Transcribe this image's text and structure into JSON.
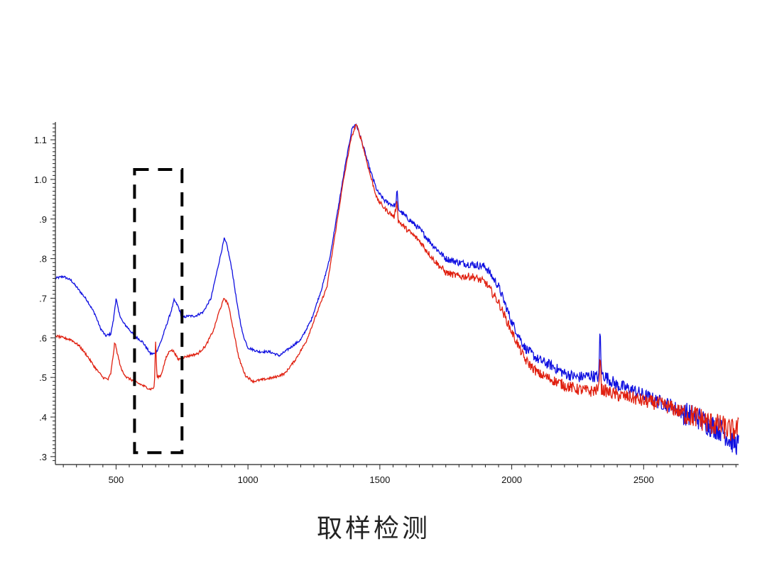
{
  "caption": "取样检测",
  "chart_data": {
    "type": "line",
    "xlim": [
      270,
      2860
    ],
    "ylim": [
      0.28,
      1.145
    ],
    "x_ticks": [
      500,
      1000,
      1500,
      2000,
      2500
    ],
    "x_tick_labels": [
      "500",
      "1000",
      "1500",
      "2000",
      "2500"
    ],
    "y_ticks": [
      0.3,
      0.4,
      0.5,
      0.6,
      0.7,
      0.8,
      0.9,
      1.0,
      1.1
    ],
    "y_tick_labels": [
      ".3",
      ".4",
      ".5",
      ".6",
      ".7",
      ".8",
      ".9",
      "1.0",
      "1.1"
    ],
    "grid": false,
    "highlight_box": {
      "x": [
        570,
        750
      ],
      "y": [
        0.31,
        1.025
      ],
      "style": "dashed"
    },
    "series": [
      {
        "color": "#1010e0",
        "points": [
          [
            270,
            0.75
          ],
          [
            300,
            0.755
          ],
          [
            330,
            0.745
          ],
          [
            360,
            0.72
          ],
          [
            390,
            0.695
          ],
          [
            420,
            0.66
          ],
          [
            440,
            0.625
          ],
          [
            460,
            0.605
          ],
          [
            480,
            0.61
          ],
          [
            490,
            0.645
          ],
          [
            500,
            0.7
          ],
          [
            510,
            0.665
          ],
          [
            525,
            0.64
          ],
          [
            545,
            0.625
          ],
          [
            570,
            0.605
          ],
          [
            600,
            0.59
          ],
          [
            630,
            0.56
          ],
          [
            650,
            0.56
          ],
          [
            670,
            0.59
          ],
          [
            690,
            0.63
          ],
          [
            710,
            0.67
          ],
          [
            720,
            0.695
          ],
          [
            735,
            0.68
          ],
          [
            750,
            0.65
          ],
          [
            770,
            0.655
          ],
          [
            800,
            0.655
          ],
          [
            830,
            0.665
          ],
          [
            860,
            0.7
          ],
          [
            880,
            0.76
          ],
          [
            900,
            0.82
          ],
          [
            910,
            0.85
          ],
          [
            920,
            0.835
          ],
          [
            940,
            0.77
          ],
          [
            960,
            0.68
          ],
          [
            980,
            0.61
          ],
          [
            1000,
            0.575
          ],
          [
            1040,
            0.565
          ],
          [
            1080,
            0.565
          ],
          [
            1120,
            0.555
          ],
          [
            1160,
            0.575
          ],
          [
            1200,
            0.595
          ],
          [
            1240,
            0.645
          ],
          [
            1280,
            0.725
          ],
          [
            1310,
            0.8
          ],
          [
            1340,
            0.92
          ],
          [
            1370,
            1.04
          ],
          [
            1395,
            1.13
          ],
          [
            1410,
            1.14
          ],
          [
            1430,
            1.1
          ],
          [
            1460,
            1.03
          ],
          [
            1490,
            0.97
          ],
          [
            1520,
            0.945
          ],
          [
            1550,
            0.935
          ],
          [
            1560,
            0.935
          ],
          [
            1565,
            0.975
          ],
          [
            1570,
            0.925
          ],
          [
            1600,
            0.905
          ],
          [
            1650,
            0.875
          ],
          [
            1700,
            0.835
          ],
          [
            1750,
            0.8
          ],
          [
            1800,
            0.79
          ],
          [
            1850,
            0.785
          ],
          [
            1900,
            0.78
          ],
          [
            1950,
            0.73
          ],
          [
            2000,
            0.64
          ],
          [
            2050,
            0.575
          ],
          [
            2100,
            0.545
          ],
          [
            2150,
            0.53
          ],
          [
            2200,
            0.51
          ],
          [
            2250,
            0.5
          ],
          [
            2300,
            0.505
          ],
          [
            2330,
            0.5
          ],
          [
            2335,
            0.63
          ],
          [
            2340,
            0.51
          ],
          [
            2400,
            0.48
          ],
          [
            2450,
            0.47
          ],
          [
            2500,
            0.455
          ],
          [
            2550,
            0.44
          ],
          [
            2600,
            0.43
          ],
          [
            2650,
            0.41
          ],
          [
            2700,
            0.4
          ],
          [
            2750,
            0.38
          ],
          [
            2800,
            0.365
          ],
          [
            2830,
            0.34
          ],
          [
            2860,
            0.33
          ]
        ]
      },
      {
        "color": "#e02010",
        "points": [
          [
            270,
            0.605
          ],
          [
            300,
            0.6
          ],
          [
            330,
            0.595
          ],
          [
            360,
            0.58
          ],
          [
            390,
            0.555
          ],
          [
            420,
            0.525
          ],
          [
            450,
            0.5
          ],
          [
            470,
            0.495
          ],
          [
            480,
            0.51
          ],
          [
            490,
            0.56
          ],
          [
            495,
            0.59
          ],
          [
            505,
            0.56
          ],
          [
            520,
            0.52
          ],
          [
            540,
            0.5
          ],
          [
            570,
            0.49
          ],
          [
            600,
            0.48
          ],
          [
            630,
            0.47
          ],
          [
            645,
            0.475
          ],
          [
            650,
            0.59
          ],
          [
            655,
            0.5
          ],
          [
            670,
            0.505
          ],
          [
            690,
            0.55
          ],
          [
            705,
            0.57
          ],
          [
            720,
            0.565
          ],
          [
            735,
            0.545
          ],
          [
            750,
            0.55
          ],
          [
            780,
            0.555
          ],
          [
            810,
            0.56
          ],
          [
            840,
            0.58
          ],
          [
            870,
            0.62
          ],
          [
            890,
            0.665
          ],
          [
            910,
            0.7
          ],
          [
            925,
            0.685
          ],
          [
            945,
            0.62
          ],
          [
            965,
            0.55
          ],
          [
            990,
            0.505
          ],
          [
            1020,
            0.49
          ],
          [
            1060,
            0.495
          ],
          [
            1100,
            0.5
          ],
          [
            1140,
            0.51
          ],
          [
            1180,
            0.545
          ],
          [
            1220,
            0.59
          ],
          [
            1260,
            0.66
          ],
          [
            1300,
            0.73
          ],
          [
            1330,
            0.86
          ],
          [
            1360,
            0.99
          ],
          [
            1390,
            1.1
          ],
          [
            1410,
            1.14
          ],
          [
            1430,
            1.1
          ],
          [
            1460,
            1.02
          ],
          [
            1490,
            0.95
          ],
          [
            1520,
            0.925
          ],
          [
            1555,
            0.905
          ],
          [
            1565,
            0.945
          ],
          [
            1570,
            0.895
          ],
          [
            1600,
            0.875
          ],
          [
            1650,
            0.845
          ],
          [
            1700,
            0.8
          ],
          [
            1750,
            0.765
          ],
          [
            1800,
            0.755
          ],
          [
            1850,
            0.755
          ],
          [
            1900,
            0.74
          ],
          [
            1950,
            0.69
          ],
          [
            2000,
            0.615
          ],
          [
            2050,
            0.545
          ],
          [
            2100,
            0.51
          ],
          [
            2150,
            0.495
          ],
          [
            2200,
            0.48
          ],
          [
            2250,
            0.47
          ],
          [
            2300,
            0.465
          ],
          [
            2330,
            0.47
          ],
          [
            2335,
            0.57
          ],
          [
            2340,
            0.47
          ],
          [
            2400,
            0.455
          ],
          [
            2450,
            0.45
          ],
          [
            2500,
            0.44
          ],
          [
            2550,
            0.435
          ],
          [
            2600,
            0.425
          ],
          [
            2650,
            0.41
          ],
          [
            2700,
            0.4
          ],
          [
            2750,
            0.385
          ],
          [
            2800,
            0.375
          ],
          [
            2830,
            0.365
          ],
          [
            2860,
            0.37
          ]
        ]
      }
    ]
  }
}
